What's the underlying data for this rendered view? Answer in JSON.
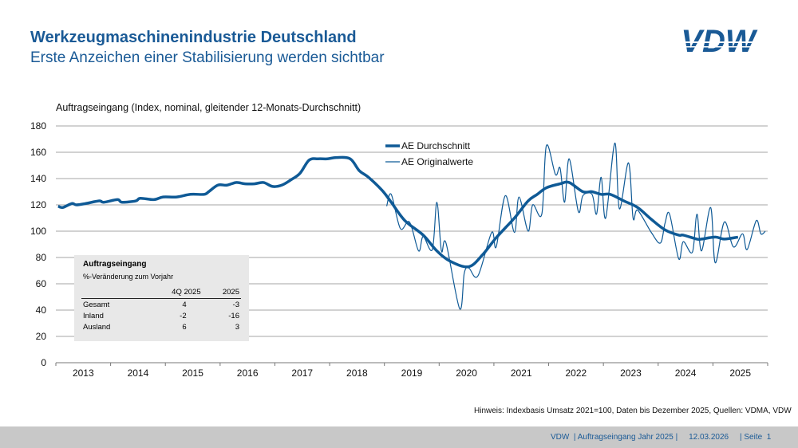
{
  "header": {
    "title": "Werkzeugmaschinenindustrie Deutschland",
    "subtitle": "Erste Anzeichen einer Stabilisierung werden sichtbar",
    "logo_text": "VDW"
  },
  "colors": {
    "brand": "#1a5a96",
    "line": "#0f5a96",
    "footer_bg": "#c8c8c8",
    "table_bg": "#e8e8e8"
  },
  "chart_data": {
    "type": "line",
    "title": "Auftragseingang (Index, nominal, gleitender 12-Monats-Durchschnitt)",
    "ylim": [
      0,
      180
    ],
    "yticks": [
      "0",
      "20",
      "40",
      "60",
      "80",
      "100",
      "120",
      "140",
      "160",
      "180"
    ],
    "xticks": [
      "2013",
      "2014",
      "2015",
      "2016",
      "2017",
      "2018",
      "2019",
      "2020",
      "2021",
      "2022",
      "2023",
      "2024",
      "2025"
    ],
    "xlim": [
      "2013-01",
      "2025-12"
    ],
    "grid": true,
    "legend_position": "top-center",
    "series": [
      {
        "name": "AE Durchschnitt",
        "style": "thick",
        "points": [
          [
            "2013-01",
            119
          ],
          [
            "2013-02",
            118
          ],
          [
            "2013-04",
            121
          ],
          [
            "2013-05",
            120
          ],
          [
            "2013-07",
            121
          ],
          [
            "2013-10",
            123
          ],
          [
            "2013-11",
            122
          ],
          [
            "2014-02",
            124
          ],
          [
            "2014-03",
            122
          ],
          [
            "2014-06",
            123
          ],
          [
            "2014-07",
            125
          ],
          [
            "2014-10",
            124
          ],
          [
            "2014-12",
            126
          ],
          [
            "2015-03",
            126
          ],
          [
            "2015-06",
            128
          ],
          [
            "2015-09",
            128
          ],
          [
            "2015-10",
            130
          ],
          [
            "2015-12",
            135
          ],
          [
            "2016-02",
            135
          ],
          [
            "2016-04",
            137
          ],
          [
            "2016-06",
            136
          ],
          [
            "2016-08",
            136
          ],
          [
            "2016-10",
            137
          ],
          [
            "2016-12",
            134
          ],
          [
            "2017-02",
            135
          ],
          [
            "2017-04",
            139
          ],
          [
            "2017-06",
            144
          ],
          [
            "2017-08",
            154
          ],
          [
            "2017-10",
            155
          ],
          [
            "2017-12",
            155
          ],
          [
            "2018-02",
            156
          ],
          [
            "2018-05",
            155
          ],
          [
            "2018-07",
            146
          ],
          [
            "2018-09",
            141
          ],
          [
            "2018-12",
            131
          ],
          [
            "2019-02",
            122
          ],
          [
            "2019-05",
            108
          ],
          [
            "2019-09",
            97
          ],
          [
            "2019-12",
            85
          ],
          [
            "2020-03",
            77
          ],
          [
            "2020-07",
            73
          ],
          [
            "2020-10",
            82
          ],
          [
            "2021-01",
            95
          ],
          [
            "2021-05",
            110
          ],
          [
            "2021-08",
            123
          ],
          [
            "2021-10",
            128
          ],
          [
            "2021-12",
            133
          ],
          [
            "2022-03",
            136
          ],
          [
            "2022-05",
            137
          ],
          [
            "2022-08",
            130
          ],
          [
            "2022-10",
            130
          ],
          [
            "2022-12",
            128
          ],
          [
            "2023-02",
            128
          ],
          [
            "2023-05",
            123
          ],
          [
            "2023-08",
            118
          ],
          [
            "2023-11",
            109
          ],
          [
            "2024-02",
            101
          ],
          [
            "2024-05",
            97
          ],
          [
            "2024-06",
            97
          ],
          [
            "2024-09",
            94
          ],
          [
            "2024-10",
            94
          ],
          [
            "2025-01",
            95.5
          ],
          [
            "2025-03",
            94
          ],
          [
            "2025-06",
            95.5
          ]
        ]
      },
      {
        "name": "AE Originalwerte",
        "style": "thin",
        "points": [
          [
            "2019-01",
            119
          ],
          [
            "2019-02",
            128
          ],
          [
            "2019-04",
            102
          ],
          [
            "2019-06",
            107
          ],
          [
            "2019-08",
            85
          ],
          [
            "2019-09",
            96
          ],
          [
            "2019-11",
            86
          ],
          [
            "2019-12",
            122
          ],
          [
            "2020-01",
            85
          ],
          [
            "2020-02",
            91
          ],
          [
            "2020-05",
            41
          ],
          [
            "2020-06",
            68
          ],
          [
            "2020-07",
            72
          ],
          [
            "2020-09",
            66
          ],
          [
            "2020-12",
            99
          ],
          [
            "2021-01",
            88
          ],
          [
            "2021-03",
            127
          ],
          [
            "2021-05",
            99
          ],
          [
            "2021-06",
            126
          ],
          [
            "2021-08",
            100
          ],
          [
            "2021-09",
            120
          ],
          [
            "2021-11",
            113
          ],
          [
            "2021-12",
            165
          ],
          [
            "2022-02",
            143
          ],
          [
            "2022-03",
            148
          ],
          [
            "2022-04",
            122
          ],
          [
            "2022-05",
            155
          ],
          [
            "2022-07",
            115
          ],
          [
            "2022-08",
            127
          ],
          [
            "2022-10",
            128
          ],
          [
            "2022-11",
            113
          ],
          [
            "2022-12",
            141
          ],
          [
            "2023-01",
            110
          ],
          [
            "2023-03",
            167
          ],
          [
            "2023-04",
            117
          ],
          [
            "2023-06",
            152
          ],
          [
            "2023-07",
            110
          ],
          [
            "2023-08",
            116
          ],
          [
            "2023-11",
            99
          ],
          [
            "2024-01",
            91
          ],
          [
            "2024-02",
            106
          ],
          [
            "2024-03",
            113
          ],
          [
            "2024-05",
            79
          ],
          [
            "2024-06",
            92
          ],
          [
            "2024-08",
            84
          ],
          [
            "2024-09",
            113
          ],
          [
            "2024-10",
            85
          ],
          [
            "2024-12",
            118
          ],
          [
            "2025-01",
            76
          ],
          [
            "2025-03",
            107
          ],
          [
            "2025-05",
            88
          ],
          [
            "2025-07",
            98
          ],
          [
            "2025-08",
            86
          ],
          [
            "2025-10",
            108
          ],
          [
            "2025-11",
            98
          ],
          [
            "2025-12",
            100
          ]
        ]
      }
    ]
  },
  "inset_table": {
    "title": "Auftragseingang",
    "subtitle": "%-Veränderung zum Vorjahr",
    "columns": [
      "",
      "4Q 2025",
      "2025"
    ],
    "rows": [
      [
        "Gesamt",
        "4",
        "-3"
      ],
      [
        "Inland",
        "-2",
        "-16"
      ],
      [
        "Ausland",
        "6",
        "3"
      ]
    ]
  },
  "note": "Hinweis: Indexbasis Umsatz 2021=100, Daten bis Dezember 2025, Quellen: VDMA, VDW",
  "footer": "VDW  | Auftragseingang Jahr 2025 |     12.03.2026     | Seite  1"
}
